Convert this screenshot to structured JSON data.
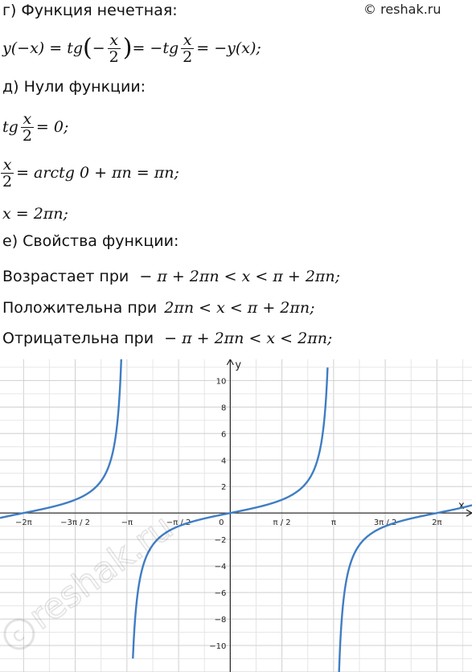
{
  "watermark": {
    "text": "© reshak.ru",
    "diagonal_text": "reshak.ru"
  },
  "section_g": {
    "heading": "г) Функция нечетная:",
    "eq_lhs": "y(−x) = tg",
    "eq_open": "(",
    "eq_minus": "−",
    "eq_num": "x",
    "eq_den": "2",
    "eq_close": ")",
    "eq_mid": " = −tg",
    "eq_num2": "x",
    "eq_den2": "2",
    "eq_rhs": " = −y(x);"
  },
  "section_d": {
    "heading": "д) Нули функции:",
    "l1_pre": "tg",
    "l1_num": "x",
    "l1_den": "2",
    "l1_post": " = 0;",
    "l2_num": "x",
    "l2_den": "2",
    "l2_post": " = arctg 0 + πn = πn;",
    "l3": "x = 2πn;"
  },
  "section_e": {
    "heading": "е) Свойства функции:",
    "p1_text": "Возрастает при",
    "p1_math": "− π + 2πn < x < π + 2πn;",
    "p2_text": "Положительна при",
    "p2_math": "2πn < x < π + 2πn;",
    "p3_text": "Отрицательна при",
    "p3_math": "− π + 2πn < x < 2πn;"
  },
  "chart_data": {
    "type": "line",
    "function": "y = tg(x/2)",
    "xlabel": "x",
    "ylabel": "y",
    "xlim": [
      -7.0,
      7.35
    ],
    "ylim": [
      -12,
      11.6
    ],
    "grid": true,
    "x_ticks": [
      {
        "value": -6.2832,
        "label": "−2π"
      },
      {
        "value": -4.7124,
        "label": "−3π / 2"
      },
      {
        "value": -3.1416,
        "label": "−π"
      },
      {
        "value": -1.5708,
        "label": "−π / 2"
      },
      {
        "value": 1.5708,
        "label": "π / 2"
      },
      {
        "value": 3.1416,
        "label": "π"
      },
      {
        "value": 4.7124,
        "label": "3π / 2"
      },
      {
        "value": 6.2832,
        "label": "2π"
      }
    ],
    "y_ticks": [
      {
        "value": 10,
        "label": "10"
      },
      {
        "value": 8,
        "label": "8"
      },
      {
        "value": 6,
        "label": "6"
      },
      {
        "value": 4,
        "label": "4"
      },
      {
        "value": 2,
        "label": "2"
      },
      {
        "value": -2,
        "label": "−2"
      },
      {
        "value": -4,
        "label": "−4"
      },
      {
        "value": -6,
        "label": "−6"
      },
      {
        "value": -8,
        "label": "−8"
      },
      {
        "value": -10,
        "label": "−10"
      }
    ],
    "origin_label": "0",
    "asymptotes": [
      -3.1416,
      3.1416
    ],
    "series": [
      {
        "x": [
          -7.0,
          -6.5,
          -6.2832,
          -6.0,
          -5.5,
          -5.0,
          -4.7124,
          -4.5,
          -4.0,
          -3.7,
          -3.5,
          -3.4,
          -3.3
        ],
        "y": [
          0.37,
          0.11,
          0.0,
          -0.14,
          -0.42,
          -0.75,
          -1.0,
          -1.24,
          -2.19,
          -3.44,
          -5.52,
          -7.7,
          -12.6
        ]
      },
      {
        "x": [
          -2.96,
          -2.8,
          -2.5,
          -2.0,
          -1.5708,
          -1.0,
          0.0,
          1.0,
          1.5708,
          2.0,
          2.5,
          2.8,
          2.96
        ],
        "y": [
          -10.9,
          -5.84,
          -3.01,
          -1.56,
          -1.0,
          -0.55,
          0.0,
          0.55,
          1.0,
          1.56,
          3.01,
          5.84,
          10.9
        ]
      },
      {
        "x": [
          3.3,
          3.4,
          3.5,
          3.7,
          4.0,
          4.5,
          4.7124,
          5.0,
          5.5,
          6.0,
          6.2832,
          6.5,
          7.0,
          7.35
        ],
        "y": [
          -12.6,
          -7.7,
          -5.52,
          -3.44,
          -2.19,
          -1.24,
          -1.0,
          -0.75,
          -0.42,
          -0.14,
          0.0,
          0.11,
          0.37,
          0.56
        ]
      }
    ],
    "color": "#3f7dc4"
  }
}
